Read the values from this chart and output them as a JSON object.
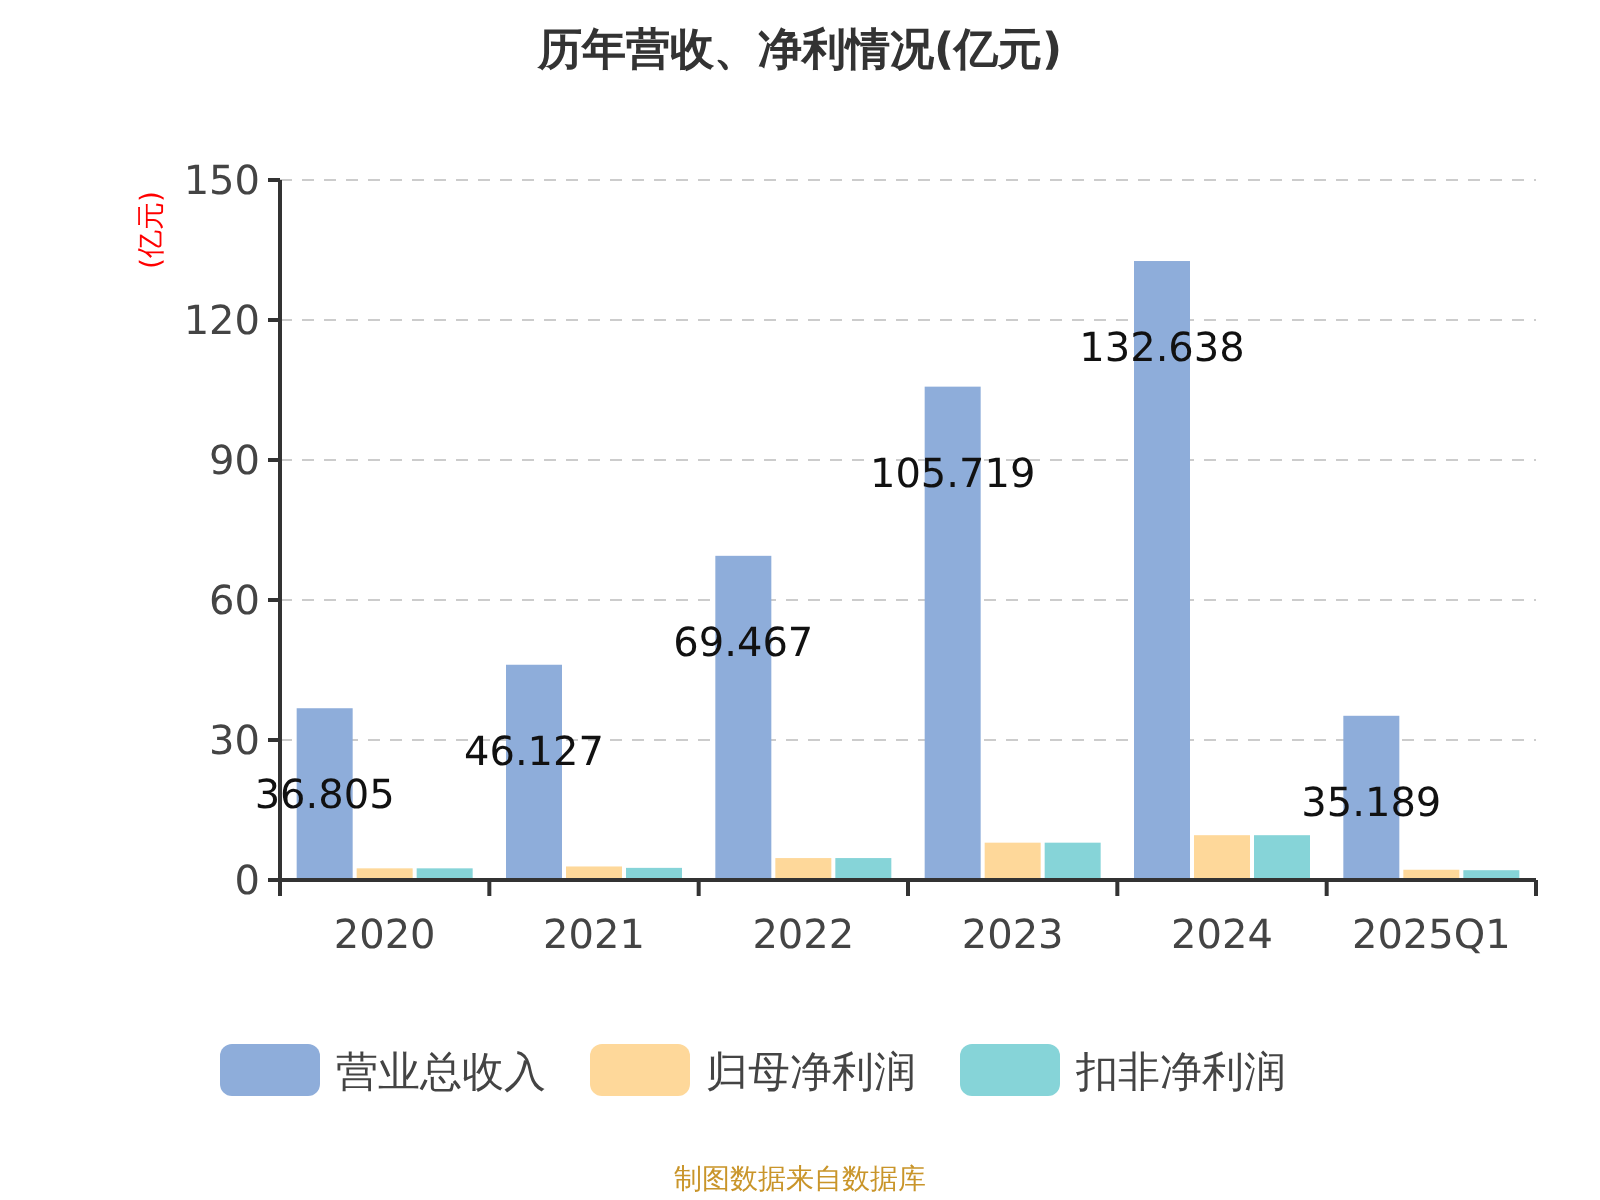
{
  "chart_data": {
    "type": "bar",
    "title": "历年营收、净利情况(亿元)",
    "ylabel": "(亿元)",
    "categories": [
      "2020",
      "2021",
      "2022",
      "2023",
      "2024",
      "2025Q1"
    ],
    "series": [
      {
        "name": "营业总收入",
        "color": "#8eadda",
        "values": [
          36.805,
          46.127,
          69.467,
          105.719,
          132.638,
          35.189
        ],
        "value_labels": [
          "36.805",
          "46.127",
          "69.467",
          "105.719",
          "132.638",
          "35.189"
        ]
      },
      {
        "name": "归母净利润",
        "color": "#fed89a",
        "values": [
          2.5,
          2.9,
          4.7,
          8.0,
          9.6,
          2.2
        ]
      },
      {
        "name": "扣非净利润",
        "color": "#86d4d8",
        "values": [
          2.5,
          2.6,
          4.7,
          8.0,
          9.6,
          2.1
        ]
      }
    ],
    "ylim": [
      0,
      150
    ],
    "yticks": [
      0,
      30,
      60,
      90,
      120,
      150
    ],
    "grid": "y",
    "legend": "bottom",
    "annotations": [
      "制图数据来自数据库"
    ]
  }
}
